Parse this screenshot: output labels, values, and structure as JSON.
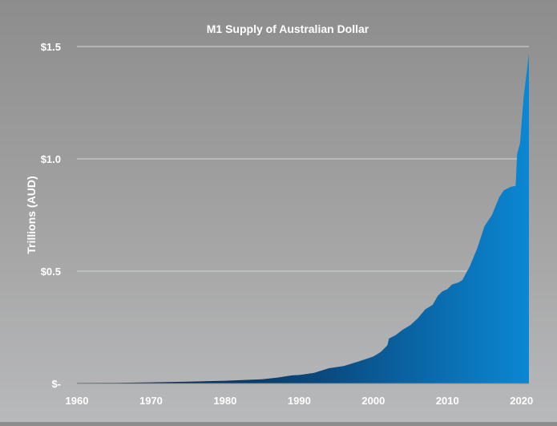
{
  "chart_data": {
    "type": "area",
    "title": "M1 Supply of Australian Dollar",
    "xlabel": "",
    "ylabel": "Trillions (AUD)",
    "xlim": [
      1960,
      2021
    ],
    "ylim": [
      0,
      1.5
    ],
    "grid": true,
    "legend": "none",
    "x_ticks": [
      1960,
      1970,
      1980,
      1990,
      2000,
      2010,
      2020
    ],
    "x_tick_labels": [
      "1960",
      "1970",
      "1980",
      "1990",
      "2000",
      "2010",
      "2020"
    ],
    "y_ticks": [
      0,
      0.5,
      1.0,
      1.5
    ],
    "y_tick_labels": [
      "$-",
      "$0.5",
      "$1.0",
      "$1.5"
    ],
    "colors": {
      "area_start": "#0a1c33",
      "area_mid": "#0a4a80",
      "area_end": "#0b87d3",
      "grid": "#d5d5d5",
      "axis": "#8a8a8a"
    },
    "series": [
      {
        "values": [
          [
            1960,
            0.002
          ],
          [
            1965,
            0.003
          ],
          [
            1970,
            0.005
          ],
          [
            1975,
            0.008
          ],
          [
            1980,
            0.012
          ],
          [
            1983,
            0.016
          ],
          [
            1985,
            0.019
          ],
          [
            1987,
            0.026
          ],
          [
            1989,
            0.036
          ],
          [
            1990,
            0.038
          ],
          [
            1992,
            0.047
          ],
          [
            1994,
            0.068
          ],
          [
            1996,
            0.078
          ],
          [
            1998,
            0.098
          ],
          [
            2000,
            0.12
          ],
          [
            2001,
            0.14
          ],
          [
            2001.9,
            0.17
          ],
          [
            2002.1,
            0.2
          ],
          [
            2003,
            0.215
          ],
          [
            2004,
            0.24
          ],
          [
            2005,
            0.26
          ],
          [
            2006,
            0.29
          ],
          [
            2007,
            0.33
          ],
          [
            2008,
            0.35
          ],
          [
            2008.7,
            0.39
          ],
          [
            2009.3,
            0.41
          ],
          [
            2010,
            0.42
          ],
          [
            2010.6,
            0.44
          ],
          [
            2011.5,
            0.45
          ],
          [
            2012,
            0.46
          ],
          [
            2013,
            0.52
          ],
          [
            2014,
            0.6
          ],
          [
            2015,
            0.7
          ],
          [
            2016,
            0.75
          ],
          [
            2017,
            0.83
          ],
          [
            2017.6,
            0.86
          ],
          [
            2018.5,
            0.875
          ],
          [
            2019.2,
            0.88
          ],
          [
            2019.4,
            1.02
          ],
          [
            2019.8,
            1.07
          ],
          [
            2020.1,
            1.2
          ],
          [
            2020.3,
            1.28
          ],
          [
            2020.6,
            1.36
          ],
          [
            2021,
            1.47
          ]
        ]
      }
    ]
  }
}
